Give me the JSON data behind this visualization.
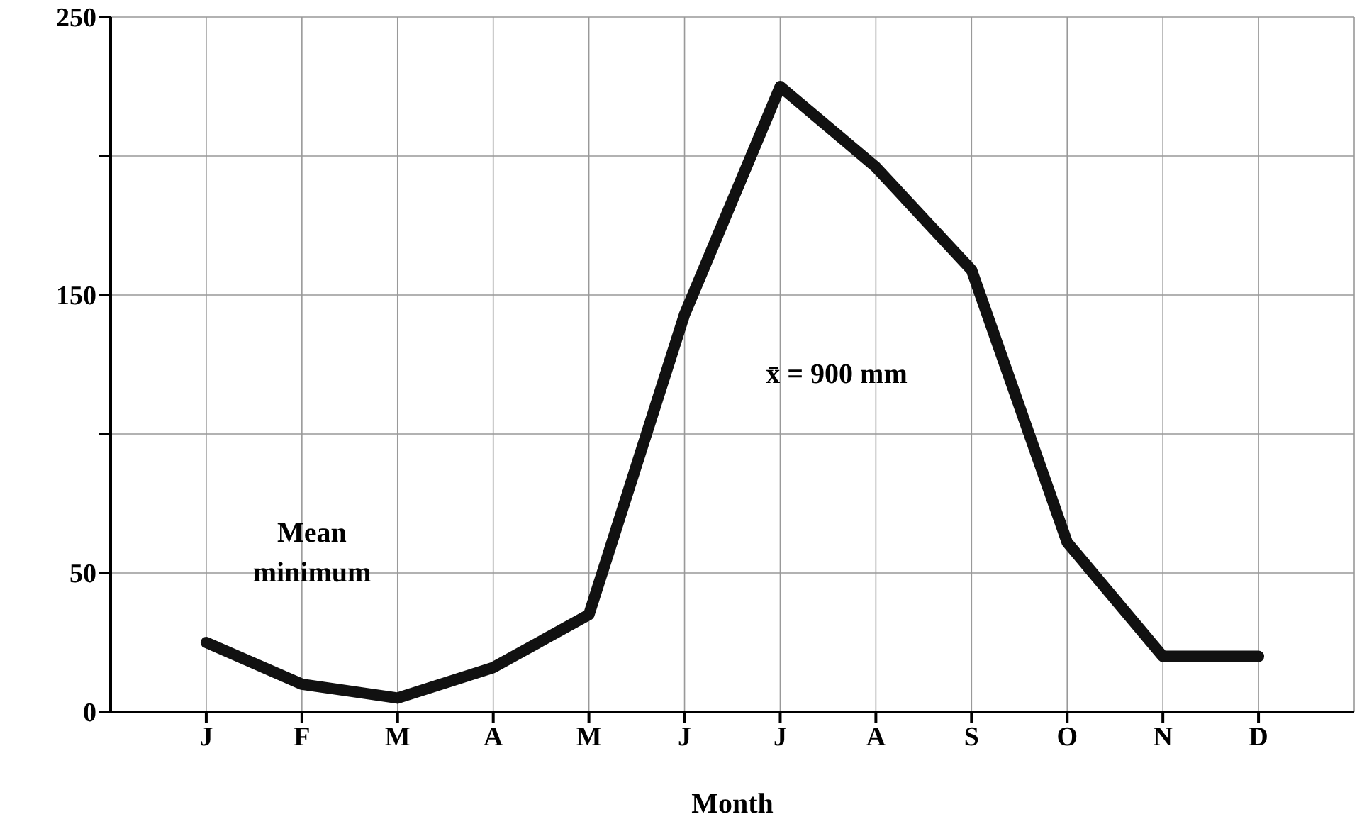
{
  "chart_data": {
    "type": "line",
    "xlabel": "Month",
    "categories": [
      "J",
      "F",
      "M",
      "A",
      "M",
      "J",
      "J",
      "A",
      "S",
      "O",
      "N",
      "D"
    ],
    "series": [
      {
        "color": "#111111",
        "values": [
          25,
          10,
          5,
          16,
          35,
          143,
          225,
          196,
          159,
          61,
          20,
          20
        ]
      }
    ],
    "ylim": [
      0,
      250
    ],
    "yticks": [
      0,
      50,
      {
        "value": 100,
        "label": null
      },
      150,
      {
        "value": 200,
        "label": null
      },
      250
    ],
    "grid": true,
    "marker": "none",
    "line_style": "solid",
    "annotations": [
      "Mean\nminimum",
      "x̄ = 900 mm"
    ]
  }
}
